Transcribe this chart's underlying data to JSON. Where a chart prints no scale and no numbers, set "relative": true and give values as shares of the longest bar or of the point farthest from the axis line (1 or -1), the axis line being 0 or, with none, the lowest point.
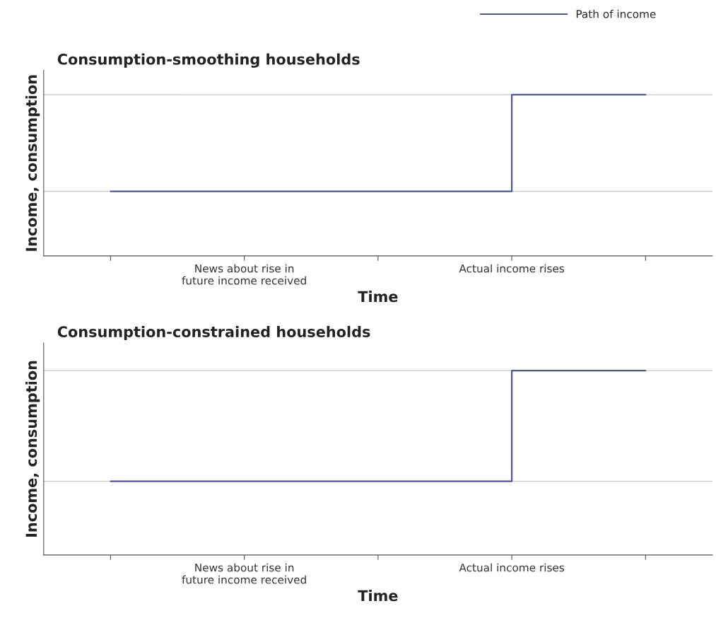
{
  "chart_data": [
    {
      "type": "step",
      "title": "Consumption-smoothing households",
      "xlabel": "Time",
      "ylabel": "Income, consumption",
      "relative": true,
      "categories": [
        null,
        "News about rise in\nfuture income received",
        null,
        "Actual income rises",
        null
      ],
      "series": [
        {
          "name": "Path of income",
          "color": "#4f55a6",
          "values": [
            0.4,
            0.4,
            0.4,
            0.4,
            1
          ]
        }
      ],
      "ref_lines": [
        {
          "axis": "y",
          "value": 0.4,
          "color": "#c8c8c8"
        },
        {
          "axis": "y",
          "value": 1,
          "color": "#c8c8c8"
        }
      ],
      "legend": "top right",
      "grid": false
    },
    {
      "type": "step",
      "title": "Consumption-constrained households",
      "xlabel": "Time",
      "ylabel": "Income, consumption",
      "relative": true,
      "categories": [
        null,
        "News about rise in\nfuture income received",
        null,
        "Actual income rises",
        null
      ],
      "series": [
        {
          "color": "#4f55a6",
          "values": [
            0.4,
            0.4,
            0.4,
            0.4,
            1
          ]
        }
      ],
      "ref_lines": [
        {
          "axis": "y",
          "value": 0.4,
          "color": "#c8c8c8"
        },
        {
          "axis": "y",
          "value": 1,
          "color": "#c8c8c8"
        }
      ],
      "grid": false
    }
  ]
}
